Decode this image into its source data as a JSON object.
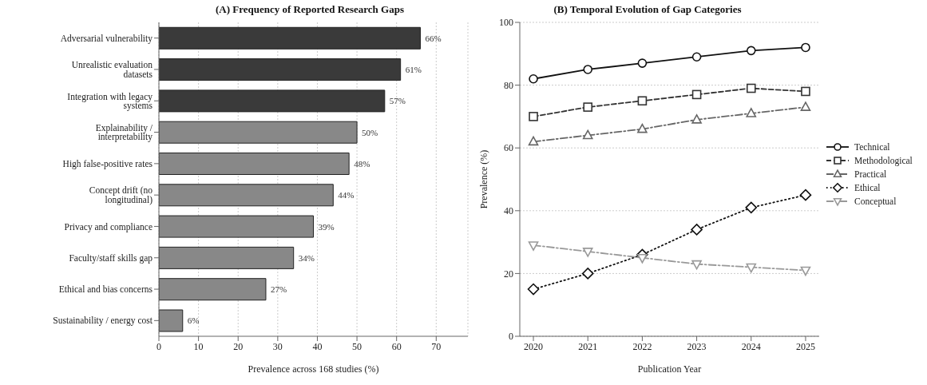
{
  "chart_data": [
    {
      "type": "bar",
      "orientation": "horizontal",
      "title": "(A) Frequency of Reported Research Gaps",
      "xlabel": "Prevalence across 168 studies (%)",
      "categories": [
        "Adversarial vulnerability",
        "Unrealistic evaluation datasets",
        "Integration with legacy systems",
        "Explainability / interpretability",
        "High false-positive rates",
        "Concept drift (no longitudinal)",
        "Privacy and compliance",
        "Faculty/staff skills gap",
        "Ethical and bias concerns",
        "Sustainability / energy cost"
      ],
      "values": [
        66,
        61,
        57,
        50,
        48,
        44,
        39,
        34,
        27,
        6
      ],
      "colors": [
        "#3a3a3a",
        "#3a3a3a",
        "#3a3a3a",
        "#888888",
        "#888888",
        "#888888",
        "#888888",
        "#888888",
        "#888888",
        "#888888"
      ],
      "value_labels": [
        "66%",
        "61%",
        "57%",
        "50%",
        "48%",
        "44%",
        "39%",
        "34%",
        "27%",
        "6%"
      ],
      "xlim": [
        0,
        78
      ],
      "xticks": [
        0,
        10,
        20,
        30,
        40,
        50,
        60,
        70
      ],
      "grid": "x"
    },
    {
      "type": "line",
      "title": "(B) Temporal Evolution of Gap Categories",
      "xlabel": "Publication Year",
      "ylabel": "Prevalence (%)",
      "x": [
        2020,
        2021,
        2022,
        2023,
        2024,
        2025
      ],
      "series": [
        {
          "name": "Technical",
          "color": "#111111",
          "marker": "circle",
          "line_style": "solid",
          "values": [
            82,
            85,
            87,
            89,
            91,
            92
          ]
        },
        {
          "name": "Methodological",
          "color": "#333333",
          "marker": "square",
          "line_style": "dashed",
          "values": [
            70,
            73,
            75,
            77,
            79,
            78
          ]
        },
        {
          "name": "Practical",
          "color": "#666666",
          "marker": "triangle",
          "line_style": "dashdot",
          "values": [
            62,
            64,
            66,
            69,
            71,
            73
          ]
        },
        {
          "name": "Ethical",
          "color": "#111111",
          "marker": "diamond",
          "line_style": "dotted",
          "values": [
            15,
            20,
            26,
            34,
            41,
            45
          ]
        },
        {
          "name": "Conceptual",
          "color": "#999999",
          "marker": "triangle-down",
          "line_style": "dashdot",
          "values": [
            29,
            27,
            25,
            23,
            22,
            21
          ]
        }
      ],
      "xlim": [
        2019.75,
        2025.25
      ],
      "xticks": [
        2020,
        2021,
        2022,
        2023,
        2024,
        2025
      ],
      "ylim": [
        0,
        100
      ],
      "yticks": [
        0,
        20,
        40,
        60,
        80,
        100
      ],
      "grid": "y",
      "legend": "right"
    }
  ]
}
